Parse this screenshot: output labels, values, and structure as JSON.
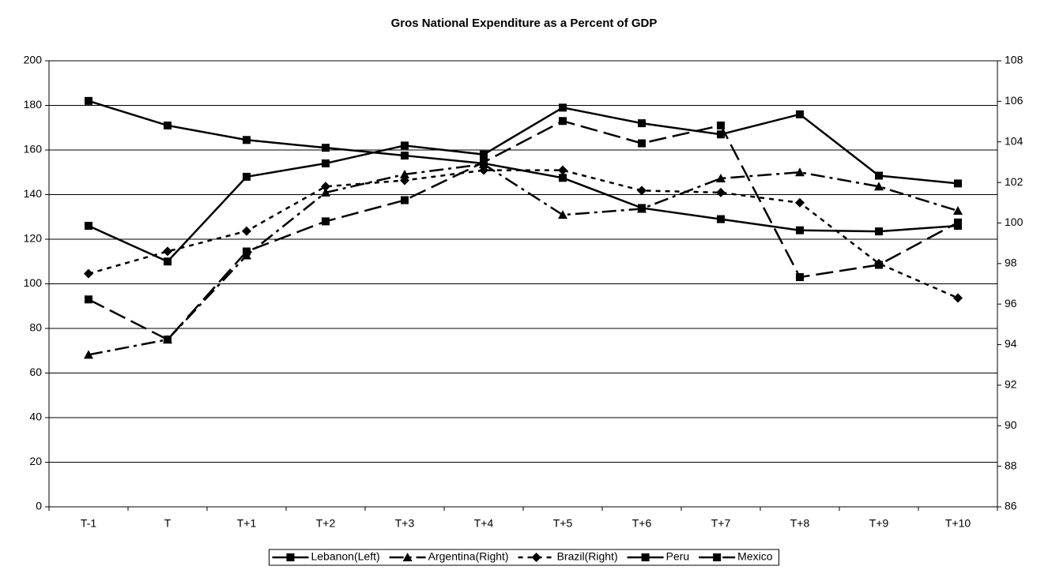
{
  "chart_data": {
    "type": "line",
    "title": "Gros National Expenditure as a Percent of GDP",
    "categories": [
      "T-1",
      "T",
      "T+1",
      "T+2",
      "T+3",
      "T+4",
      "T+5",
      "T+6",
      "T+7",
      "T+8",
      "T+9",
      "T+10"
    ],
    "ylim": [
      0,
      200
    ],
    "yticks": [
      0,
      20,
      40,
      60,
      80,
      100,
      120,
      140,
      160,
      180,
      200
    ],
    "y2lim": [
      86,
      108
    ],
    "y2ticks": [
      86,
      88,
      90,
      92,
      94,
      96,
      98,
      100,
      102,
      104,
      106,
      108
    ],
    "grid": true,
    "legend": "bottom",
    "series": [
      {
        "name": "Lebanon(Left)",
        "color": "#000000",
        "marker": "square",
        "dash": "solid",
        "values": [
          182,
          171,
          164.5,
          161,
          157.5,
          154,
          147.5,
          134,
          129,
          124,
          123.5,
          126
        ]
      },
      {
        "name": "Argentina(Right)",
        "color": "#000000",
        "marker": "triangle",
        "dash": "dashdot",
        "axis": "y2",
        "values": [
          93.5,
          94.25,
          98.4,
          101.5,
          102.4,
          102.9,
          100.4,
          100.7,
          102.2,
          102.5,
          101.8,
          100.6
        ]
      },
      {
        "name": "Brazil(Right)",
        "color": "#000000",
        "marker": "diamond",
        "dash": "dotted",
        "axis": "y2",
        "values": [
          97.5,
          98.6,
          99.6,
          101.8,
          102.1,
          102.6,
          102.6,
          101.6,
          101.5,
          101.0,
          98.0,
          96.3
        ]
      },
      {
        "name": "Peru",
        "color": "#000000",
        "marker": "square",
        "dash": "solid",
        "values": [
          126,
          110,
          148,
          154,
          162,
          158,
          179,
          172,
          167,
          176,
          148.5,
          145
        ]
      },
      {
        "name": "Mexico",
        "color": "#000000",
        "marker": "square",
        "dash": "longdash",
        "values": [
          93,
          75,
          114.5,
          128,
          137.5,
          154.5,
          173,
          163,
          171,
          103,
          108.5,
          127.5
        ]
      }
    ]
  }
}
